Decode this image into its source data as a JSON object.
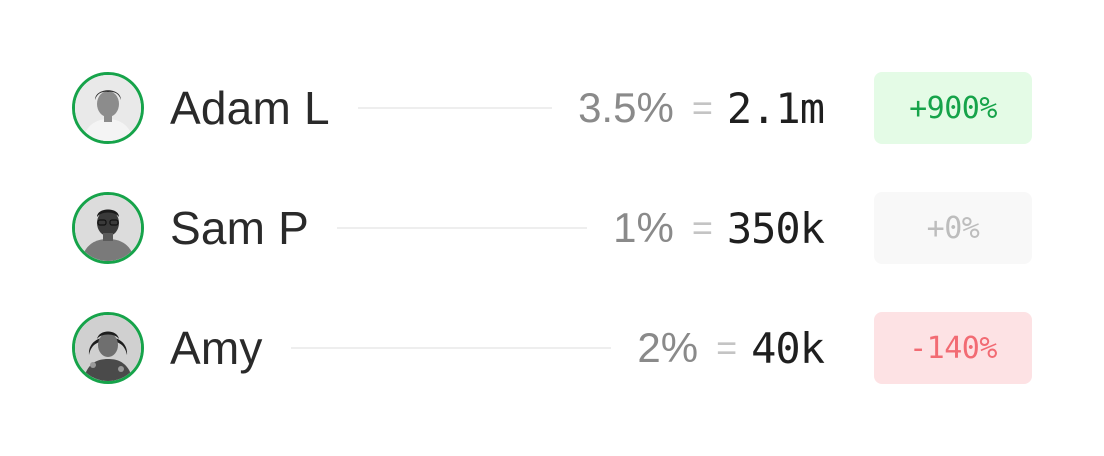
{
  "rows": [
    {
      "name": "Adam L",
      "percent": "3.5%",
      "equals": "=",
      "amount": "2.1m",
      "change": "+900%",
      "change_state": "positive",
      "avatar_icon": "person-photo-icon"
    },
    {
      "name": "Sam P",
      "percent": "1%",
      "equals": "=",
      "amount": "350k",
      "change": "+0%",
      "change_state": "neutral",
      "avatar_icon": "person-photo-icon"
    },
    {
      "name": "Amy",
      "percent": "2%",
      "equals": "=",
      "amount": "40k",
      "change": "-140%",
      "change_state": "negative",
      "avatar_icon": "person-photo-icon"
    }
  ],
  "colors": {
    "avatar_ring": "#16a34a",
    "positive_bg": "#e4fbe6",
    "positive_text": "#16a34a",
    "neutral_bg": "#f8f8f8",
    "neutral_text": "#bdbdbd",
    "negative_bg": "#fde2e4",
    "negative_text": "#f26b73"
  }
}
